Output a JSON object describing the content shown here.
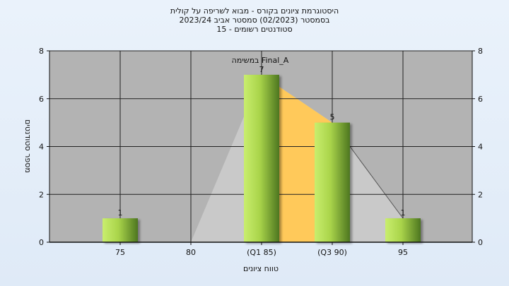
{
  "header": {
    "title_line1": "היסטוגרמת ציונים בקורס - מבוא לשריפה על קולית",
    "title_line2": "בסמסטר  (02/2023)  סמסטר אביב 2023/24",
    "title_line3": "סטודנטים רשומים - 15"
  },
  "chart_data": {
    "type": "bar",
    "categories": [
      "75",
      "80",
      "(Q1 85)",
      "(Q3 90)",
      "95"
    ],
    "values": [
      1,
      0,
      7,
      5,
      1
    ],
    "data_labels": [
      "1",
      "",
      "7",
      "5",
      "1"
    ],
    "ylim": [
      0,
      8
    ],
    "yticks": [
      "0",
      "2",
      "4",
      "6",
      "8"
    ],
    "xlabel": "טווח ציונים",
    "ylabel": "מספר סטודנטים",
    "annotation": "Final_A במשימה",
    "grid": true,
    "colors": {
      "plot_bg": "#b3b3b3",
      "bar_light": "#c6ec6a",
      "bar_dark": "#4f7a1e",
      "iqr_fill": "#ffc95a",
      "area_fill": "#c9c9c9"
    }
  }
}
